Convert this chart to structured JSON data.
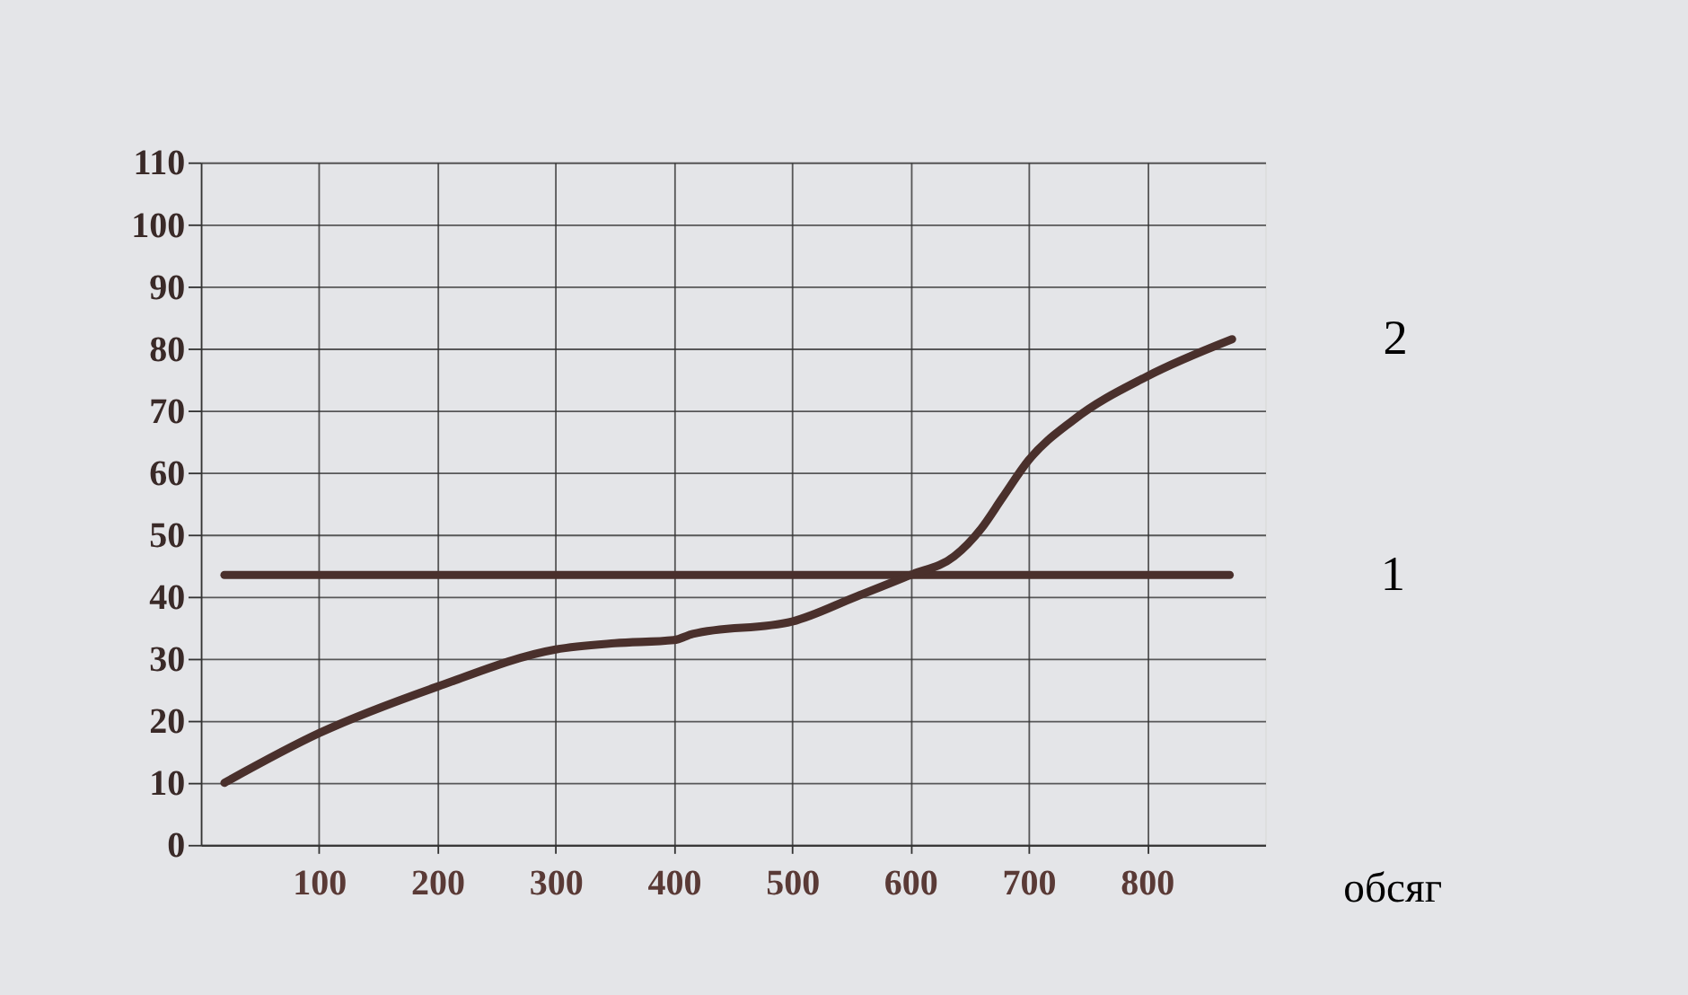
{
  "chart_data": {
    "type": "line",
    "xlabel": "обсяг",
    "xlim": [
      0,
      900
    ],
    "xticks": [
      100,
      200,
      300,
      400,
      500,
      600,
      700,
      800
    ],
    "ylim": [
      0,
      110
    ],
    "yticks": [
      0,
      10,
      20,
      30,
      40,
      50,
      60,
      70,
      80,
      90,
      100,
      110
    ],
    "grid": true,
    "legend": false,
    "marker": "none",
    "line_style": "solid",
    "series": [
      {
        "name": "1",
        "color": "#4a302c",
        "x": [
          20,
          870
        ],
        "values": [
          43.5,
          43.5
        ]
      },
      {
        "name": "2",
        "color": "#4a302c",
        "x": [
          20,
          100,
          200,
          300,
          350,
          400,
          416,
          500,
          554,
          600,
          637,
          660,
          678,
          700,
          738,
          800,
          872
        ],
        "values": [
          10,
          18,
          25.5,
          31.5,
          32.5,
          33,
          34,
          36,
          40,
          43.5,
          46.5,
          51,
          56,
          62,
          68.5,
          75.5,
          81.5
        ]
      }
    ]
  }
}
